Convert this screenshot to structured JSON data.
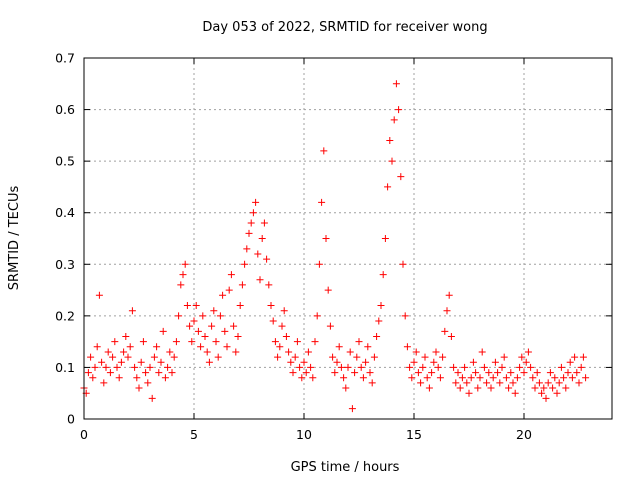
{
  "chart_data": {
    "type": "scatter",
    "title": "Day 053 of 2022, SRMTID for receiver wong",
    "xlabel": "GPS time / hours",
    "ylabel": "SRMTID / TECUs",
    "xlim": [
      0,
      24
    ],
    "ylim": [
      0,
      0.7
    ],
    "xticks": [
      0,
      5,
      10,
      15,
      20
    ],
    "yticks": [
      0,
      0.1,
      0.2,
      0.3,
      0.4,
      0.5,
      0.6,
      0.7
    ],
    "grid": true,
    "marker": "+",
    "color": "#ff0000",
    "data_span_hours": [
      0,
      22.8
    ],
    "series": [
      {
        "name": "SRMTID",
        "points": [
          [
            0.0,
            0.06
          ],
          [
            0.1,
            0.05
          ],
          [
            0.2,
            0.09
          ],
          [
            0.3,
            0.12
          ],
          [
            0.4,
            0.08
          ],
          [
            0.5,
            0.1
          ],
          [
            0.6,
            0.14
          ],
          [
            0.7,
            0.24
          ],
          [
            0.8,
            0.11
          ],
          [
            0.9,
            0.07
          ],
          [
            1.0,
            0.1
          ],
          [
            1.1,
            0.13
          ],
          [
            1.2,
            0.09
          ],
          [
            1.3,
            0.12
          ],
          [
            1.4,
            0.15
          ],
          [
            1.5,
            0.1
          ],
          [
            1.6,
            0.08
          ],
          [
            1.7,
            0.11
          ],
          [
            1.8,
            0.13
          ],
          [
            1.9,
            0.16
          ],
          [
            2.0,
            0.12
          ],
          [
            2.1,
            0.14
          ],
          [
            2.2,
            0.21
          ],
          [
            2.3,
            0.1
          ],
          [
            2.4,
            0.08
          ],
          [
            2.5,
            0.06
          ],
          [
            2.6,
            0.11
          ],
          [
            2.7,
            0.15
          ],
          [
            2.8,
            0.09
          ],
          [
            2.9,
            0.07
          ],
          [
            3.0,
            0.1
          ],
          [
            3.1,
            0.04
          ],
          [
            3.2,
            0.12
          ],
          [
            3.3,
            0.14
          ],
          [
            3.4,
            0.09
          ],
          [
            3.5,
            0.11
          ],
          [
            3.6,
            0.17
          ],
          [
            3.7,
            0.08
          ],
          [
            3.8,
            0.1
          ],
          [
            3.9,
            0.13
          ],
          [
            4.0,
            0.09
          ],
          [
            4.1,
            0.12
          ],
          [
            4.2,
            0.15
          ],
          [
            4.3,
            0.2
          ],
          [
            4.4,
            0.26
          ],
          [
            4.5,
            0.28
          ],
          [
            4.6,
            0.3
          ],
          [
            4.7,
            0.22
          ],
          [
            4.8,
            0.18
          ],
          [
            4.9,
            0.15
          ],
          [
            5.0,
            0.19
          ],
          [
            5.1,
            0.22
          ],
          [
            5.2,
            0.17
          ],
          [
            5.3,
            0.14
          ],
          [
            5.4,
            0.2
          ],
          [
            5.5,
            0.16
          ],
          [
            5.6,
            0.13
          ],
          [
            5.7,
            0.11
          ],
          [
            5.8,
            0.18
          ],
          [
            5.9,
            0.21
          ],
          [
            6.0,
            0.15
          ],
          [
            6.1,
            0.12
          ],
          [
            6.2,
            0.2
          ],
          [
            6.3,
            0.24
          ],
          [
            6.4,
            0.17
          ],
          [
            6.5,
            0.14
          ],
          [
            6.6,
            0.25
          ],
          [
            6.7,
            0.28
          ],
          [
            6.8,
            0.18
          ],
          [
            6.9,
            0.13
          ],
          [
            7.0,
            0.16
          ],
          [
            7.1,
            0.22
          ],
          [
            7.2,
            0.26
          ],
          [
            7.3,
            0.3
          ],
          [
            7.4,
            0.33
          ],
          [
            7.5,
            0.36
          ],
          [
            7.6,
            0.38
          ],
          [
            7.7,
            0.4
          ],
          [
            7.8,
            0.42
          ],
          [
            7.9,
            0.32
          ],
          [
            8.0,
            0.27
          ],
          [
            8.1,
            0.35
          ],
          [
            8.2,
            0.38
          ],
          [
            8.3,
            0.31
          ],
          [
            8.4,
            0.26
          ],
          [
            8.5,
            0.22
          ],
          [
            8.6,
            0.19
          ],
          [
            8.7,
            0.15
          ],
          [
            8.8,
            0.12
          ],
          [
            8.9,
            0.14
          ],
          [
            9.0,
            0.18
          ],
          [
            9.1,
            0.21
          ],
          [
            9.2,
            0.16
          ],
          [
            9.3,
            0.13
          ],
          [
            9.4,
            0.11
          ],
          [
            9.5,
            0.09
          ],
          [
            9.6,
            0.12
          ],
          [
            9.7,
            0.15
          ],
          [
            9.8,
            0.1
          ],
          [
            9.9,
            0.08
          ],
          [
            10.0,
            0.11
          ],
          [
            10.1,
            0.09
          ],
          [
            10.2,
            0.13
          ],
          [
            10.3,
            0.1
          ],
          [
            10.4,
            0.08
          ],
          [
            10.5,
            0.15
          ],
          [
            10.6,
            0.2
          ],
          [
            10.7,
            0.3
          ],
          [
            10.8,
            0.42
          ],
          [
            10.9,
            0.52
          ],
          [
            11.0,
            0.35
          ],
          [
            11.1,
            0.25
          ],
          [
            11.2,
            0.18
          ],
          [
            11.3,
            0.12
          ],
          [
            11.4,
            0.09
          ],
          [
            11.5,
            0.11
          ],
          [
            11.6,
            0.14
          ],
          [
            11.7,
            0.1
          ],
          [
            11.8,
            0.08
          ],
          [
            11.9,
            0.06
          ],
          [
            12.0,
            0.1
          ],
          [
            12.1,
            0.13
          ],
          [
            12.2,
            0.02
          ],
          [
            12.3,
            0.09
          ],
          [
            12.4,
            0.12
          ],
          [
            12.5,
            0.15
          ],
          [
            12.6,
            0.1
          ],
          [
            12.7,
            0.08
          ],
          [
            12.8,
            0.11
          ],
          [
            12.9,
            0.14
          ],
          [
            13.0,
            0.09
          ],
          [
            13.1,
            0.07
          ],
          [
            13.2,
            0.12
          ],
          [
            13.3,
            0.16
          ],
          [
            13.4,
            0.19
          ],
          [
            13.5,
            0.22
          ],
          [
            13.6,
            0.28
          ],
          [
            13.7,
            0.35
          ],
          [
            13.8,
            0.45
          ],
          [
            13.9,
            0.54
          ],
          [
            14.0,
            0.5
          ],
          [
            14.1,
            0.58
          ],
          [
            14.2,
            0.65
          ],
          [
            14.3,
            0.6
          ],
          [
            14.4,
            0.47
          ],
          [
            14.5,
            0.3
          ],
          [
            14.6,
            0.2
          ],
          [
            14.7,
            0.14
          ],
          [
            14.8,
            0.1
          ],
          [
            14.9,
            0.08
          ],
          [
            15.0,
            0.11
          ],
          [
            15.1,
            0.13
          ],
          [
            15.2,
            0.09
          ],
          [
            15.3,
            0.07
          ],
          [
            15.4,
            0.1
          ],
          [
            15.5,
            0.12
          ],
          [
            15.6,
            0.08
          ],
          [
            15.7,
            0.06
          ],
          [
            15.8,
            0.09
          ],
          [
            15.9,
            0.11
          ],
          [
            16.0,
            0.13
          ],
          [
            16.1,
            0.1
          ],
          [
            16.2,
            0.08
          ],
          [
            16.3,
            0.12
          ],
          [
            16.4,
            0.17
          ],
          [
            16.5,
            0.21
          ],
          [
            16.6,
            0.24
          ],
          [
            16.7,
            0.16
          ],
          [
            16.8,
            0.1
          ],
          [
            16.9,
            0.07
          ],
          [
            17.0,
            0.09
          ],
          [
            17.1,
            0.06
          ],
          [
            17.2,
            0.08
          ],
          [
            17.3,
            0.1
          ],
          [
            17.4,
            0.07
          ],
          [
            17.5,
            0.05
          ],
          [
            17.6,
            0.08
          ],
          [
            17.7,
            0.11
          ],
          [
            17.8,
            0.09
          ],
          [
            17.9,
            0.06
          ],
          [
            18.0,
            0.08
          ],
          [
            18.1,
            0.13
          ],
          [
            18.2,
            0.1
          ],
          [
            18.3,
            0.07
          ],
          [
            18.4,
            0.09
          ],
          [
            18.5,
            0.06
          ],
          [
            18.6,
            0.08
          ],
          [
            18.7,
            0.11
          ],
          [
            18.8,
            0.09
          ],
          [
            18.9,
            0.07
          ],
          [
            19.0,
            0.1
          ],
          [
            19.1,
            0.12
          ],
          [
            19.2,
            0.08
          ],
          [
            19.3,
            0.06
          ],
          [
            19.4,
            0.09
          ],
          [
            19.5,
            0.07
          ],
          [
            19.6,
            0.05
          ],
          [
            19.7,
            0.08
          ],
          [
            19.8,
            0.1
          ],
          [
            19.9,
            0.12
          ],
          [
            20.0,
            0.09
          ],
          [
            20.1,
            0.11
          ],
          [
            20.2,
            0.13
          ],
          [
            20.3,
            0.1
          ],
          [
            20.4,
            0.08
          ],
          [
            20.5,
            0.06
          ],
          [
            20.6,
            0.09
          ],
          [
            20.7,
            0.07
          ],
          [
            20.8,
            0.05
          ],
          [
            20.9,
            0.06
          ],
          [
            21.0,
            0.04
          ],
          [
            21.1,
            0.07
          ],
          [
            21.2,
            0.09
          ],
          [
            21.3,
            0.06
          ],
          [
            21.4,
            0.08
          ],
          [
            21.5,
            0.05
          ],
          [
            21.6,
            0.07
          ],
          [
            21.7,
            0.1
          ],
          [
            21.8,
            0.08
          ],
          [
            21.9,
            0.06
          ],
          [
            22.0,
            0.09
          ],
          [
            22.1,
            0.11
          ],
          [
            22.2,
            0.08
          ],
          [
            22.3,
            0.12
          ],
          [
            22.4,
            0.09
          ],
          [
            22.5,
            0.07
          ],
          [
            22.6,
            0.1
          ],
          [
            22.7,
            0.12
          ],
          [
            22.8,
            0.08
          ]
        ]
      }
    ]
  }
}
